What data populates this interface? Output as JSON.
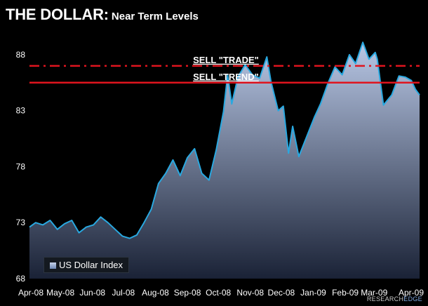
{
  "header": {
    "title_main": "THE DOLLAR:",
    "title_sub": "Near Term Levels"
  },
  "legend": {
    "label": "US Dollar Index"
  },
  "watermark": {
    "part1": "RESEARCH",
    "part2": "EDGE"
  },
  "colors": {
    "background": "#000000",
    "line": "#29a8e0",
    "fill_top": "#b9c8e6",
    "fill_bottom": "#1a2236",
    "level_line": "#e0141e"
  },
  "chart_data": {
    "type": "area",
    "title": "THE DOLLAR: Near Term Levels",
    "xlabel": "",
    "ylabel": "",
    "ylim": [
      68,
      91
    ],
    "yticks": [
      68,
      73,
      78,
      83,
      88
    ],
    "xticks": [
      "Apr-08",
      "May-08",
      "Jun-08",
      "Jul-08",
      "Aug-08",
      "Sep-08",
      "Oct-08",
      "Nov-08",
      "Dec-08",
      "Jan-09",
      "Feb-09",
      "Mar-09",
      "Apr-09"
    ],
    "grid": false,
    "legend_position": "bottom-left",
    "series": [
      {
        "name": "US Dollar Index",
        "x": [
          "2008-04-01",
          "2008-04-07",
          "2008-04-14",
          "2008-04-21",
          "2008-04-28",
          "2008-05-05",
          "2008-05-12",
          "2008-05-19",
          "2008-05-26",
          "2008-06-02",
          "2008-06-09",
          "2008-06-16",
          "2008-06-23",
          "2008-06-30",
          "2008-07-07",
          "2008-07-14",
          "2008-07-21",
          "2008-07-28",
          "2008-08-04",
          "2008-08-11",
          "2008-08-18",
          "2008-08-25",
          "2008-09-01",
          "2008-09-08",
          "2008-09-15",
          "2008-09-22",
          "2008-09-29",
          "2008-10-06",
          "2008-10-10",
          "2008-10-14",
          "2008-10-20",
          "2008-10-27",
          "2008-11-03",
          "2008-11-10",
          "2008-11-17",
          "2008-11-21",
          "2008-11-28",
          "2008-12-03",
          "2008-12-08",
          "2008-12-12",
          "2008-12-18",
          "2008-12-24",
          "2009-01-02",
          "2009-01-08",
          "2009-01-15",
          "2009-01-22",
          "2009-01-29",
          "2009-02-05",
          "2009-02-11",
          "2009-02-18",
          "2009-02-24",
          "2009-03-02",
          "2009-03-04",
          "2009-03-10",
          "2009-03-18",
          "2009-03-25",
          "2009-03-31",
          "2009-04-06",
          "2009-04-10",
          "2009-04-14"
        ],
        "values": [
          72.6,
          73.0,
          72.8,
          73.2,
          72.4,
          72.9,
          73.2,
          72.1,
          72.6,
          72.8,
          73.5,
          73.0,
          72.4,
          71.8,
          71.6,
          71.9,
          73.0,
          74.2,
          76.5,
          77.4,
          78.6,
          77.2,
          78.8,
          79.6,
          77.4,
          76.8,
          79.5,
          82.9,
          86.2,
          83.6,
          86.0,
          87.1,
          86.2,
          85.9,
          87.8,
          85.6,
          83.0,
          83.4,
          79.2,
          81.6,
          78.9,
          80.3,
          82.4,
          83.6,
          85.4,
          86.9,
          86.2,
          88.0,
          87.2,
          89.1,
          87.6,
          88.2,
          87.6,
          83.5,
          84.4,
          86.1,
          86.0,
          85.7,
          84.9,
          84.4
        ]
      }
    ],
    "levels": [
      {
        "label": "SELL \"TRADE\"",
        "value": 87.0,
        "style": "dash-dot"
      },
      {
        "label": "SELL \"TREND\"",
        "value": 85.5,
        "style": "solid"
      }
    ]
  }
}
